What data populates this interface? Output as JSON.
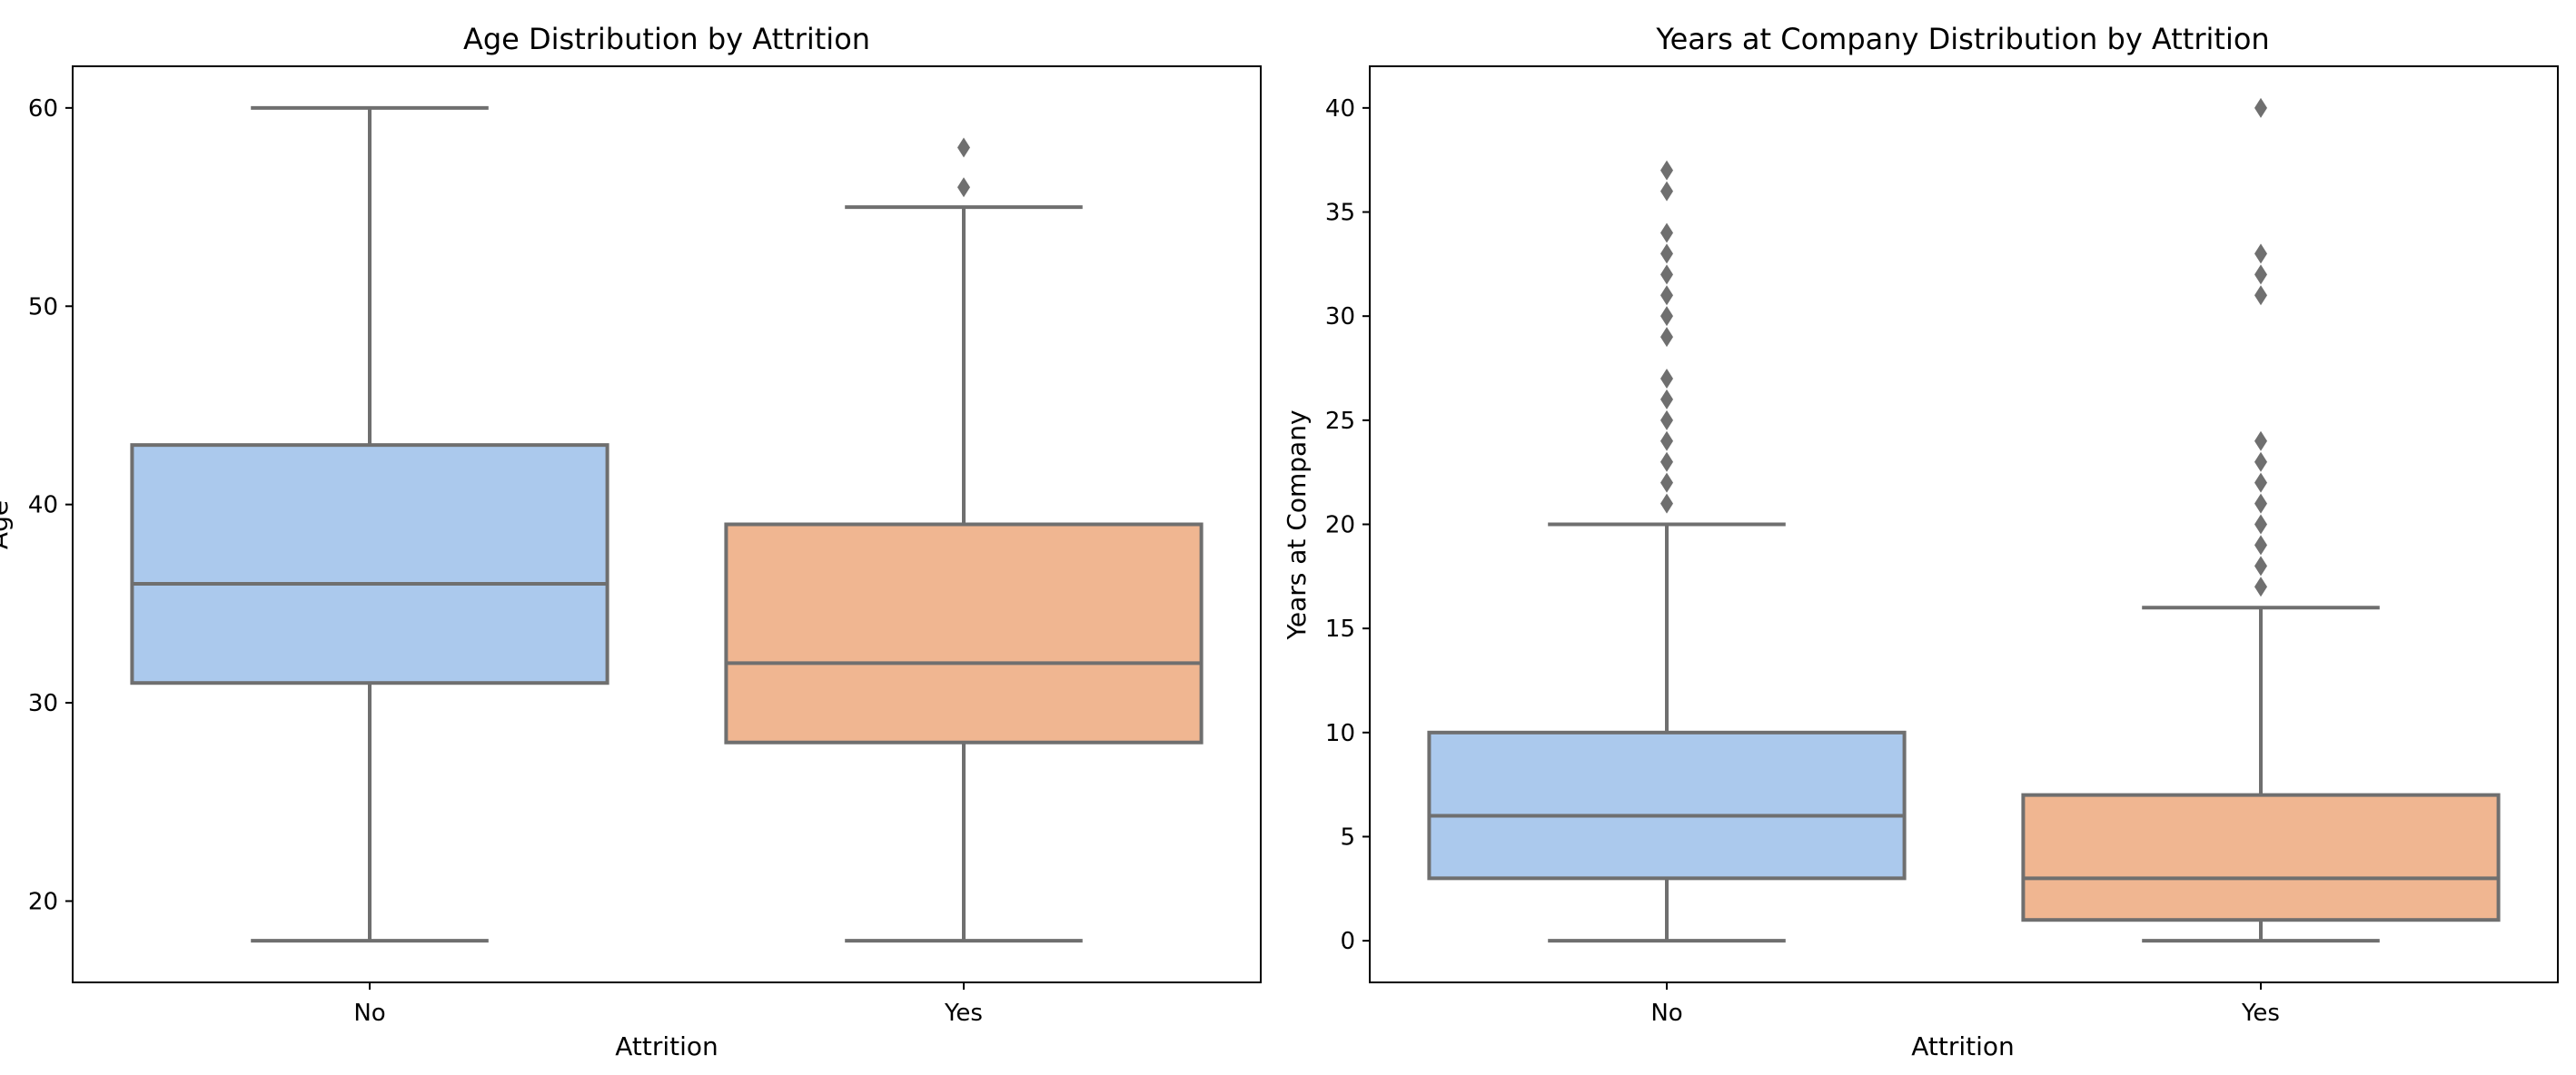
{
  "chart_data": [
    {
      "type": "box",
      "title": "Age Distribution by Attrition",
      "xlabel": "Attrition",
      "ylabel": "Age",
      "categories": [
        "No",
        "Yes"
      ],
      "yticks": [
        20,
        30,
        40,
        50,
        60
      ],
      "ylim": [
        15.9,
        62.1
      ],
      "grid": false,
      "colors": [
        "#abc9ed",
        "#f0b691"
      ],
      "series": [
        {
          "category": "No",
          "whisker_low": 18,
          "q1": 31,
          "median": 36,
          "q3": 43,
          "whisker_high": 60,
          "outliers": []
        },
        {
          "category": "Yes",
          "whisker_low": 18,
          "q1": 28,
          "median": 32,
          "q3": 39,
          "whisker_high": 55,
          "outliers": [
            56,
            58
          ]
        }
      ]
    },
    {
      "type": "box",
      "title": "Years at Company Distribution by Attrition",
      "xlabel": "Attrition",
      "ylabel": "Years at Company",
      "categories": [
        "No",
        "Yes"
      ],
      "yticks": [
        0,
        5,
        10,
        15,
        20,
        25,
        30,
        35,
        40
      ],
      "ylim": [
        -2,
        42
      ],
      "grid": false,
      "colors": [
        "#abc9ed",
        "#f0b691"
      ],
      "series": [
        {
          "category": "No",
          "whisker_low": 0,
          "q1": 3,
          "median": 6,
          "q3": 10,
          "whisker_high": 20,
          "outliers": [
            21,
            22,
            23,
            24,
            25,
            26,
            27,
            29,
            30,
            31,
            32,
            33,
            34,
            36,
            37
          ]
        },
        {
          "category": "Yes",
          "whisker_low": 0,
          "q1": 1,
          "median": 3,
          "q3": 7,
          "whisker_high": 16,
          "outliers": [
            17,
            18,
            19,
            20,
            21,
            22,
            23,
            24,
            31,
            32,
            33,
            40
          ]
        }
      ]
    }
  ]
}
